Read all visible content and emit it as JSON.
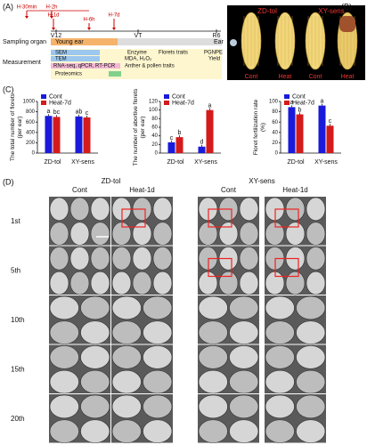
{
  "panel_a": {
    "label": "(A)",
    "time_points": [
      "H-30min",
      "H-2h",
      "H-6h",
      "H-1d",
      "H-7d"
    ],
    "stages": [
      "V12",
      "VT",
      "R6"
    ],
    "sampling": {
      "label": "Sampling organ",
      "items": [
        "Young ear",
        "Ear"
      ]
    },
    "measurement": {
      "label": "Measurement",
      "items": [
        "SEM",
        "TEM",
        "Enzyme",
        "MDA, H₂O₂",
        "Florets traits",
        "PGNPE",
        "Yield",
        "RNA-seq, qPCR, RT-PCR",
        "Anther & pollen traits",
        "Proteomics"
      ]
    }
  },
  "panel_b": {
    "label": "(B)",
    "groups": [
      "ZD-tol",
      "XY-sens"
    ],
    "ears": [
      "Cont",
      "Heat",
      "Cont",
      "Heat"
    ]
  },
  "panel_c": {
    "label": "(C)"
  },
  "chart_data": [
    {
      "type": "bar",
      "y_label": "The total number of florets (per ear)",
      "categories": [
        "ZD-tol",
        "XY-sens"
      ],
      "series": [
        {
          "name": "Cont",
          "color": "#1a1adb",
          "values": [
            720,
            710
          ],
          "labels": [
            "a",
            "ab"
          ]
        },
        {
          "name": "Heat-7d",
          "color": "#d41a1a",
          "values": [
            700,
            690
          ],
          "labels": [
            "bc",
            "c"
          ]
        }
      ],
      "ylim": [
        0,
        1000
      ],
      "yticks": [
        0,
        200,
        400,
        600,
        800,
        1000
      ]
    },
    {
      "type": "bar",
      "y_label": "The number of abortive florets (per ear)",
      "categories": [
        "ZD-tol",
        "XY-sens"
      ],
      "series": [
        {
          "name": "Cont",
          "color": "#1a1adb",
          "values": [
            25,
            15
          ],
          "labels": [
            "c",
            "d"
          ]
        },
        {
          "name": "Heat-7d",
          "color": "#d41a1a",
          "values": [
            37,
            100
          ],
          "labels": [
            "b",
            "a"
          ]
        }
      ],
      "ylim": [
        0,
        120
      ],
      "yticks": [
        0,
        20,
        40,
        60,
        80,
        100,
        120
      ]
    },
    {
      "type": "bar",
      "y_label": "Floret fertilization rate (%)",
      "categories": [
        "ZD-tol",
        "XY-sens"
      ],
      "series": [
        {
          "name": "Cont",
          "color": "#1a1adb",
          "values": [
            89,
            92
          ],
          "labels": [
            "a",
            "a"
          ]
        },
        {
          "name": "Heat-7d",
          "color": "#d41a1a",
          "values": [
            75,
            53
          ],
          "labels": [
            "b",
            "c"
          ]
        }
      ],
      "ylim": [
        0,
        100
      ],
      "yticks": [
        0,
        20,
        40,
        60,
        80,
        100
      ]
    }
  ],
  "panel_d": {
    "label": "(D)",
    "groups": [
      {
        "title": "ZD-tol",
        "columns": [
          "Cont",
          "Heat-1d"
        ]
      },
      {
        "title": "XY-sens",
        "columns": [
          "Cont",
          "Heat-1d"
        ]
      }
    ],
    "rows": [
      "1st",
      "5th",
      "10th",
      "15th",
      "20th"
    ]
  }
}
